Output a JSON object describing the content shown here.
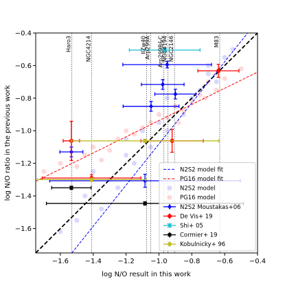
{
  "chart_data": {
    "type": "scatter",
    "xlabel": "log N/O result in this work",
    "ylabel": "log N/O ratio in the previous work",
    "xlim": [
      -1.75,
      -0.4
    ],
    "ylim": [
      -1.75,
      -0.4
    ],
    "xticks": [
      {
        "value": -1.6,
        "label": "−1.6"
      },
      {
        "value": -1.4,
        "label": "−1.4"
      },
      {
        "value": -1.2,
        "label": "−1.2"
      },
      {
        "value": -1.0,
        "label": "−1.0"
      },
      {
        "value": -0.8,
        "label": "−0.8"
      },
      {
        "value": -0.6,
        "label": "−0.6"
      },
      {
        "value": -0.4,
        "label": "−0.4"
      }
    ],
    "yticks": [
      {
        "value": -1.6,
        "label": "−1.6"
      },
      {
        "value": -1.4,
        "label": "−1.4"
      },
      {
        "value": -1.2,
        "label": "−1.2"
      },
      {
        "value": -1.0,
        "label": "−1.0"
      },
      {
        "value": -0.8,
        "label": "−0.8"
      },
      {
        "value": -0.6,
        "label": "−0.6"
      },
      {
        "value": -0.4,
        "label": "−0.4"
      }
    ],
    "legend": "lower right",
    "vlines": [
      {
        "label": "Haro3",
        "x": -1.53
      },
      {
        "label": "NGC4214",
        "x": -1.41
      },
      {
        "label": "IIZw40",
        "x": -1.075
      },
      {
        "label": "Arp299A",
        "x": -1.05
      },
      {
        "label": "Arp299B&C",
        "x": -0.97
      },
      {
        "label": "NGC4194",
        "x": -0.945
      },
      {
        "label": "NGC2146",
        "x": -0.905
      },
      {
        "label": "M83",
        "x": -0.63
      }
    ],
    "lines": [
      {
        "color": "#000000",
        "x": [
          -1.75,
          -0.4
        ],
        "y": [
          -1.75,
          -0.4
        ]
      },
      {
        "name": "N2S2 model fit",
        "color": "#0000ff",
        "x": [
          -1.53,
          -0.46
        ],
        "y": [
          -1.75,
          -0.4
        ]
      },
      {
        "name": "PG16 model fit",
        "color": "#ff0000",
        "x": [
          -1.75,
          -0.4
        ],
        "y": [
          -1.31,
          -0.64
        ]
      }
    ],
    "clouds": [
      {
        "name": "N2S2 model",
        "color": "#7f7fff",
        "x": [
          -1.6,
          -1.5,
          -1.45,
          -1.35,
          -1.3,
          -1.25,
          -1.2,
          -1.15,
          -1.1,
          -1.05,
          -1.0,
          -0.95,
          -0.9,
          -0.85,
          -0.8,
          -0.75,
          -0.7,
          -0.65,
          -0.6,
          -0.55,
          -1.4,
          -1.2,
          -0.95,
          -0.7
        ],
        "y": [
          -1.62,
          -1.55,
          -1.4,
          -1.48,
          -1.3,
          -1.35,
          -1.15,
          -1.2,
          -1.0,
          -1.1,
          -0.95,
          -1.0,
          -0.85,
          -0.9,
          -0.8,
          -0.75,
          -0.65,
          -0.7,
          -0.55,
          -0.5,
          -1.25,
          -1.05,
          -0.8,
          -0.6
        ]
      },
      {
        "name": "PG16 model",
        "color": "#ff7f7f",
        "x": [
          -1.7,
          -1.6,
          -1.5,
          -1.45,
          -1.4,
          -1.3,
          -1.25,
          -1.2,
          -1.1,
          -1.05,
          -1.0,
          -0.95,
          -0.9,
          -0.85,
          -0.8,
          -0.75,
          -0.7,
          -0.65,
          -0.6,
          -0.5,
          -1.35,
          -1.15,
          -0.88,
          -0.72
        ],
        "y": [
          -1.25,
          -1.2,
          -1.22,
          -1.15,
          -1.1,
          -1.12,
          -1.05,
          -1.0,
          -0.98,
          -0.95,
          -0.9,
          -0.92,
          -0.85,
          -0.88,
          -0.82,
          -0.78,
          -0.7,
          -0.75,
          -0.68,
          -0.62,
          -1.18,
          -1.02,
          -0.95,
          -0.8
        ]
      }
    ],
    "series": [
      {
        "name": "N2S2 Moustakas+06",
        "color": "#0000ff",
        "marker": "D",
        "x": [
          -1.533,
          -1.048,
          -0.977,
          -0.9,
          -0.95,
          -1.085
        ],
        "y": [
          -1.13,
          -0.85,
          -0.716,
          -0.775,
          -0.594,
          -1.307
        ],
        "xerr": [
          0.07,
          0.17,
          0.13,
          0.125,
          0.27,
          0.58
        ],
        "yerr": [
          0.03,
          0.03,
          0.03,
          0.03,
          0.02,
          0.04
        ]
      },
      {
        "name": "De Vis+ 19",
        "color": "#ff0000",
        "marker": "o",
        "x": [
          -1.533,
          -0.92,
          -0.638,
          -1.41
        ],
        "y": [
          -1.062,
          -1.062,
          -0.632,
          -1.29
        ],
        "xerr": [
          0.05,
          0.19,
          0.125,
          0.3
        ],
        "yerr": [
          0.12,
          0.07,
          0.04,
          0.02
        ]
      },
      {
        "name": "Shi+ 05",
        "color": "#17becf",
        "marker": "x",
        "x": [
          -0.965
        ],
        "y": [
          -0.505
        ],
        "xerr": [
          0.215
        ],
        "yerr": [
          0.01
        ]
      },
      {
        "name": "Cormier+ 19",
        "color": "#000000",
        "marker": "s",
        "x": [
          -1.533,
          -1.085
        ],
        "y": [
          -1.35,
          -1.446
        ],
        "xerr": [
          0.12,
          0.6
        ],
        "yerr": [
          0.01,
          0.01
        ]
      },
      {
        "name": "Kobulnicky+ 96",
        "color": "#bcbd22",
        "marker": "s",
        "x": [
          -1.085,
          -1.41
        ],
        "y": [
          -1.062,
          -1.3
        ],
        "xerr": [
          0.45,
          0.33
        ],
        "yerr": [
          0.01,
          0.01
        ]
      }
    ]
  }
}
